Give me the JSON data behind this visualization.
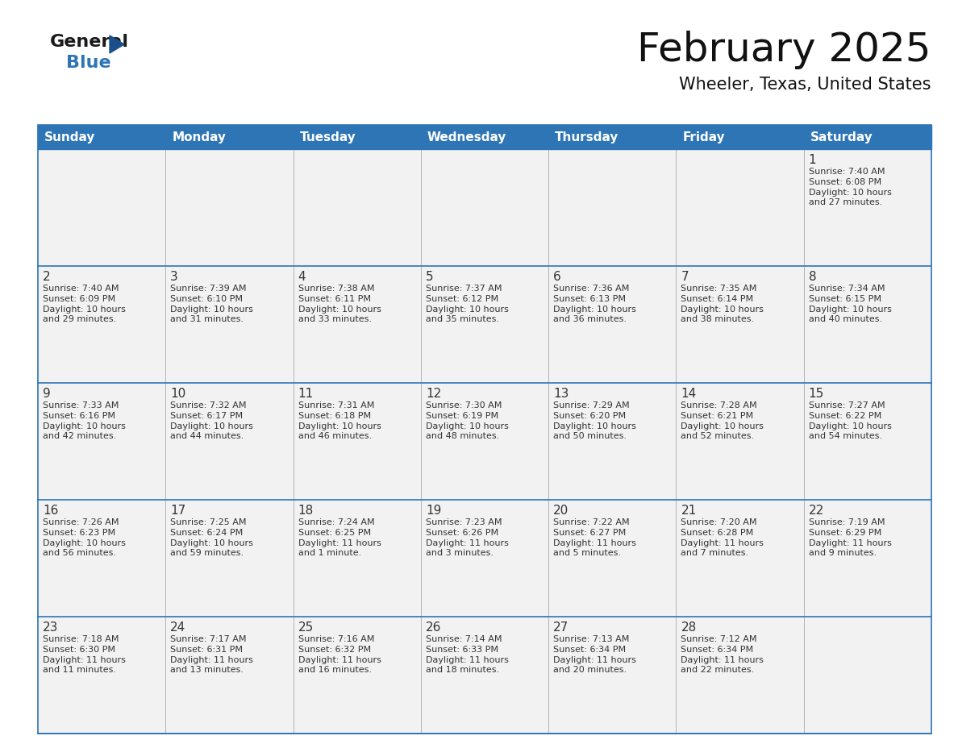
{
  "title": "February 2025",
  "subtitle": "Wheeler, Texas, United States",
  "header_color": "#2E75B6",
  "header_text_color": "#FFFFFF",
  "cell_bg_color": "#F2F2F2",
  "border_color": "#2E75B6",
  "row_line_color": "#2E75B6",
  "col_line_color": "#AAAAAA",
  "text_color": "#333333",
  "days_of_week": [
    "Sunday",
    "Monday",
    "Tuesday",
    "Wednesday",
    "Thursday",
    "Friday",
    "Saturday"
  ],
  "calendar_data": [
    [
      {
        "day": null,
        "info": null
      },
      {
        "day": null,
        "info": null
      },
      {
        "day": null,
        "info": null
      },
      {
        "day": null,
        "info": null
      },
      {
        "day": null,
        "info": null
      },
      {
        "day": null,
        "info": null
      },
      {
        "day": "1",
        "info": "Sunrise: 7:40 AM\nSunset: 6:08 PM\nDaylight: 10 hours\nand 27 minutes."
      }
    ],
    [
      {
        "day": "2",
        "info": "Sunrise: 7:40 AM\nSunset: 6:09 PM\nDaylight: 10 hours\nand 29 minutes."
      },
      {
        "day": "3",
        "info": "Sunrise: 7:39 AM\nSunset: 6:10 PM\nDaylight: 10 hours\nand 31 minutes."
      },
      {
        "day": "4",
        "info": "Sunrise: 7:38 AM\nSunset: 6:11 PM\nDaylight: 10 hours\nand 33 minutes."
      },
      {
        "day": "5",
        "info": "Sunrise: 7:37 AM\nSunset: 6:12 PM\nDaylight: 10 hours\nand 35 minutes."
      },
      {
        "day": "6",
        "info": "Sunrise: 7:36 AM\nSunset: 6:13 PM\nDaylight: 10 hours\nand 36 minutes."
      },
      {
        "day": "7",
        "info": "Sunrise: 7:35 AM\nSunset: 6:14 PM\nDaylight: 10 hours\nand 38 minutes."
      },
      {
        "day": "8",
        "info": "Sunrise: 7:34 AM\nSunset: 6:15 PM\nDaylight: 10 hours\nand 40 minutes."
      }
    ],
    [
      {
        "day": "9",
        "info": "Sunrise: 7:33 AM\nSunset: 6:16 PM\nDaylight: 10 hours\nand 42 minutes."
      },
      {
        "day": "10",
        "info": "Sunrise: 7:32 AM\nSunset: 6:17 PM\nDaylight: 10 hours\nand 44 minutes."
      },
      {
        "day": "11",
        "info": "Sunrise: 7:31 AM\nSunset: 6:18 PM\nDaylight: 10 hours\nand 46 minutes."
      },
      {
        "day": "12",
        "info": "Sunrise: 7:30 AM\nSunset: 6:19 PM\nDaylight: 10 hours\nand 48 minutes."
      },
      {
        "day": "13",
        "info": "Sunrise: 7:29 AM\nSunset: 6:20 PM\nDaylight: 10 hours\nand 50 minutes."
      },
      {
        "day": "14",
        "info": "Sunrise: 7:28 AM\nSunset: 6:21 PM\nDaylight: 10 hours\nand 52 minutes."
      },
      {
        "day": "15",
        "info": "Sunrise: 7:27 AM\nSunset: 6:22 PM\nDaylight: 10 hours\nand 54 minutes."
      }
    ],
    [
      {
        "day": "16",
        "info": "Sunrise: 7:26 AM\nSunset: 6:23 PM\nDaylight: 10 hours\nand 56 minutes."
      },
      {
        "day": "17",
        "info": "Sunrise: 7:25 AM\nSunset: 6:24 PM\nDaylight: 10 hours\nand 59 minutes."
      },
      {
        "day": "18",
        "info": "Sunrise: 7:24 AM\nSunset: 6:25 PM\nDaylight: 11 hours\nand 1 minute."
      },
      {
        "day": "19",
        "info": "Sunrise: 7:23 AM\nSunset: 6:26 PM\nDaylight: 11 hours\nand 3 minutes."
      },
      {
        "day": "20",
        "info": "Sunrise: 7:22 AM\nSunset: 6:27 PM\nDaylight: 11 hours\nand 5 minutes."
      },
      {
        "day": "21",
        "info": "Sunrise: 7:20 AM\nSunset: 6:28 PM\nDaylight: 11 hours\nand 7 minutes."
      },
      {
        "day": "22",
        "info": "Sunrise: 7:19 AM\nSunset: 6:29 PM\nDaylight: 11 hours\nand 9 minutes."
      }
    ],
    [
      {
        "day": "23",
        "info": "Sunrise: 7:18 AM\nSunset: 6:30 PM\nDaylight: 11 hours\nand 11 minutes."
      },
      {
        "day": "24",
        "info": "Sunrise: 7:17 AM\nSunset: 6:31 PM\nDaylight: 11 hours\nand 13 minutes."
      },
      {
        "day": "25",
        "info": "Sunrise: 7:16 AM\nSunset: 6:32 PM\nDaylight: 11 hours\nand 16 minutes."
      },
      {
        "day": "26",
        "info": "Sunrise: 7:14 AM\nSunset: 6:33 PM\nDaylight: 11 hours\nand 18 minutes."
      },
      {
        "day": "27",
        "info": "Sunrise: 7:13 AM\nSunset: 6:34 PM\nDaylight: 11 hours\nand 20 minutes."
      },
      {
        "day": "28",
        "info": "Sunrise: 7:12 AM\nSunset: 6:34 PM\nDaylight: 11 hours\nand 22 minutes."
      },
      {
        "day": null,
        "info": null
      }
    ]
  ],
  "logo_general_color": "#1a1a1a",
  "logo_blue_color": "#2E75B6",
  "logo_triangle_color": "#1B4F8A",
  "title_fontsize": 36,
  "subtitle_fontsize": 15,
  "dow_fontsize": 11,
  "day_num_fontsize": 11,
  "info_fontsize": 8
}
